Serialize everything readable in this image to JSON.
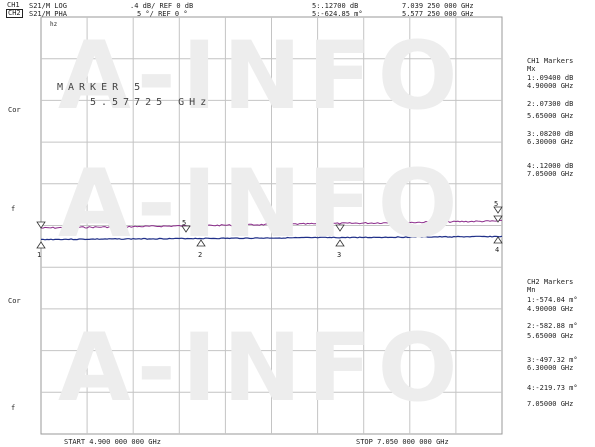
{
  "header": {
    "ch1_tag": "CH1",
    "ch2_tag": "CH2",
    "ch1_trace": "S21/M LOG",
    "ch1_scale": ".4 dB/ REF 0 dB",
    "ch2_trace": "S21/M PHA",
    "ch2_scale": "5 °/ REF 0 °",
    "ch1_readout": "5:.12700 dB",
    "ch1_freq": "7.039 250 000 GHz",
    "ch2_readout": "5:-624.85 m°",
    "ch2_freq": "5.577 250 000 GHz"
  },
  "plot": {
    "small_label": "hz",
    "marker_title": "MARKER 5",
    "marker_freq": "5.57725 GHz",
    "cor_top": "Cor",
    "f_top": "f",
    "cor_bottom": "Cor",
    "f_bottom": "f",
    "watermark": "A-INFO",
    "start": "START 4.900 000 000 GHz",
    "stop": "STOP 7.050 000 000 GHz",
    "marker_numbers": [
      "1",
      "2",
      "3",
      "4",
      "5",
      "5"
    ]
  },
  "ch1_markers": {
    "title": "CH1 Markers",
    "mode": "Mx",
    "items": [
      {
        "value": "1:.09400 dB",
        "freq": "4.90000 GHz"
      },
      {
        "value": "2:.07300 dB",
        "freq": "5.65000 GHz"
      },
      {
        "value": "3:.08200 dB",
        "freq": "6.30000 GHz"
      },
      {
        "value": "4:.12000 dB",
        "freq": "7.05000 GHz"
      }
    ]
  },
  "ch2_markers": {
    "title": "CH2 Markers",
    "mode": "Mn",
    "items": [
      {
        "value": "1:-574.04 m°",
        "freq": "4.90000 GHz"
      },
      {
        "value": "2:-582.88 m°",
        "freq": "5.65000 GHz"
      },
      {
        "value": "3:-497.32 m°",
        "freq": "6.30000 GHz"
      },
      {
        "value": "4:-219.73 m°",
        "freq": "7.05000 GHz"
      }
    ]
  },
  "colors": {
    "trace_ch1": "#8a2a8a",
    "trace_ch2": "#1f2f88",
    "grid": "#c4c4c4",
    "watermark": "#ececec"
  }
}
